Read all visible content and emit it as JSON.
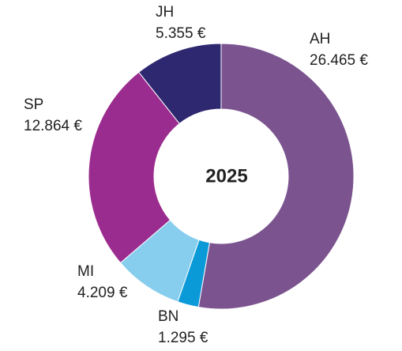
{
  "chart_data": {
    "type": "donut",
    "center_label": "2025",
    "categories": [
      "AH",
      "BN",
      "MI",
      "SP",
      "JH"
    ],
    "values": [
      26465,
      1295,
      4209,
      12864,
      5355
    ],
    "value_labels": [
      "26.465 €",
      "1.295 €",
      "4.209 €",
      "12.864 €",
      "5.355 €"
    ],
    "colors": [
      "#7b548f",
      "#0a9ad8",
      "#86cdee",
      "#9b2c8f",
      "#2e2870"
    ]
  }
}
